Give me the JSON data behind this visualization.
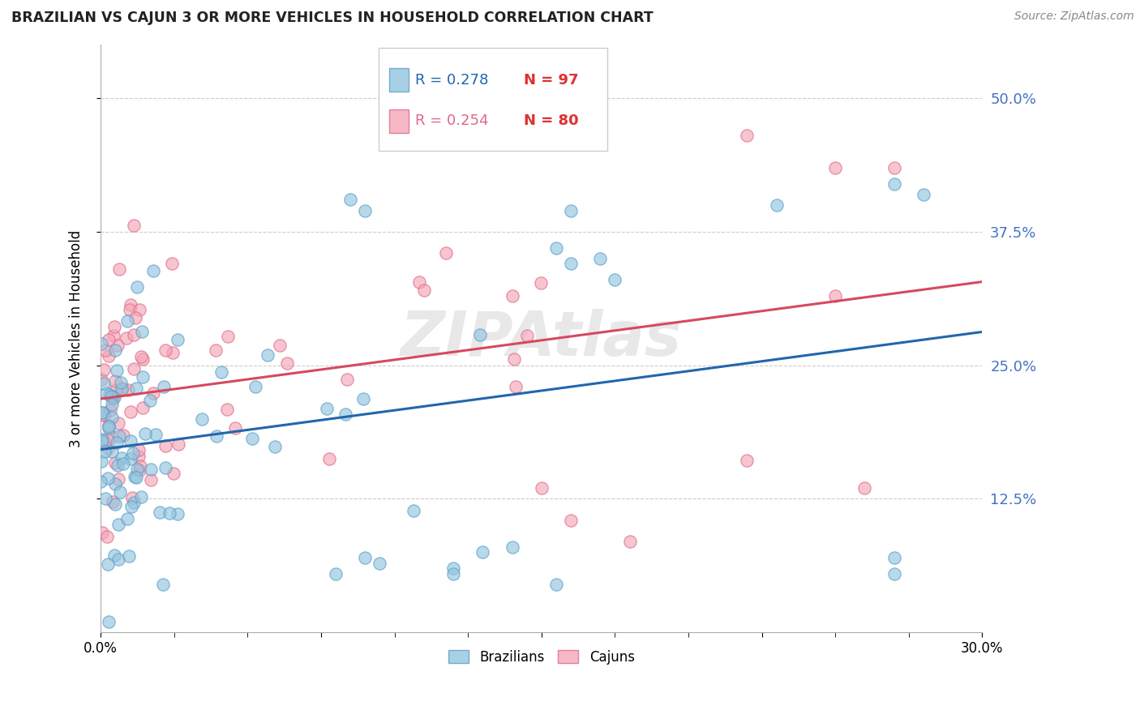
{
  "title": "BRAZILIAN VS CAJUN 3 OR MORE VEHICLES IN HOUSEHOLD CORRELATION CHART",
  "source": "Source: ZipAtlas.com",
  "ylabel": "3 or more Vehicles in Household",
  "ytick_labels": [
    "50.0%",
    "37.5%",
    "25.0%",
    "12.5%"
  ],
  "ytick_values": [
    0.5,
    0.375,
    0.25,
    0.125
  ],
  "xlim": [
    0.0,
    0.3
  ],
  "ylim": [
    0.0,
    0.55
  ],
  "R_brazilian": 0.278,
  "N_brazilian": 97,
  "R_cajun": 0.254,
  "N_cajun": 80,
  "color_brazilian": "#92c5de",
  "color_cajun": "#f4a6b8",
  "edge_color_brazilian": "#5b9dc9",
  "edge_color_cajun": "#e06888",
  "line_color_brazilian": "#2166ac",
  "line_color_cajun": "#d6495e",
  "watermark": "ZIPAtlas",
  "background_color": "#ffffff",
  "grid_color": "#cccccc",
  "title_color": "#222222",
  "source_color": "#888888",
  "right_tick_color": "#4472c4"
}
